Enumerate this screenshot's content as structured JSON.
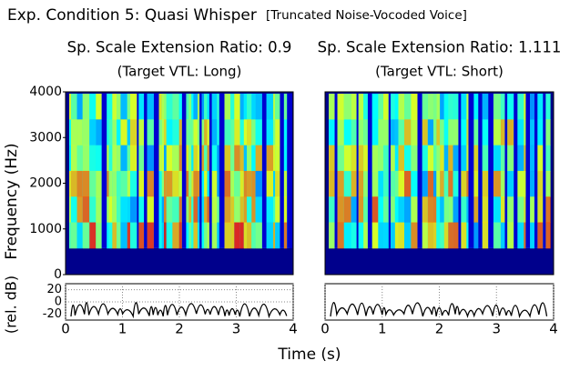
{
  "title": "Exp. Condition 5: Quasi Whisper",
  "subtitle": "[Truncated Noise-Vocoded Voice]",
  "xlabel": "Time (s)",
  "chart_data": [
    {
      "type": "spectrogram",
      "title": "Sp. Scale Extension Ratio: 0.9",
      "subtitle": "(Target VTL: Long)",
      "ylabel": "Frequency (Hz)",
      "xlim": [
        0,
        4
      ],
      "xticks": [
        0,
        1,
        2,
        3,
        4
      ],
      "ylim": [
        0,
        4000
      ],
      "yticks": [
        0,
        1000,
        2000,
        3000,
        4000
      ],
      "env_ylabel": "(rel. dB)",
      "env_ylim": [
        -30,
        30
      ],
      "env_yticks": [
        20,
        0,
        -20
      ]
    },
    {
      "type": "spectrogram",
      "title": "Sp. Scale Extension Ratio: 1.111",
      "subtitle": "(Target VTL: Short)",
      "xlim": [
        0,
        4
      ],
      "xticks": [
        0,
        1,
        2,
        3,
        4
      ],
      "ylim": [
        0,
        4000
      ],
      "env_ylim": [
        -30,
        30
      ]
    }
  ]
}
